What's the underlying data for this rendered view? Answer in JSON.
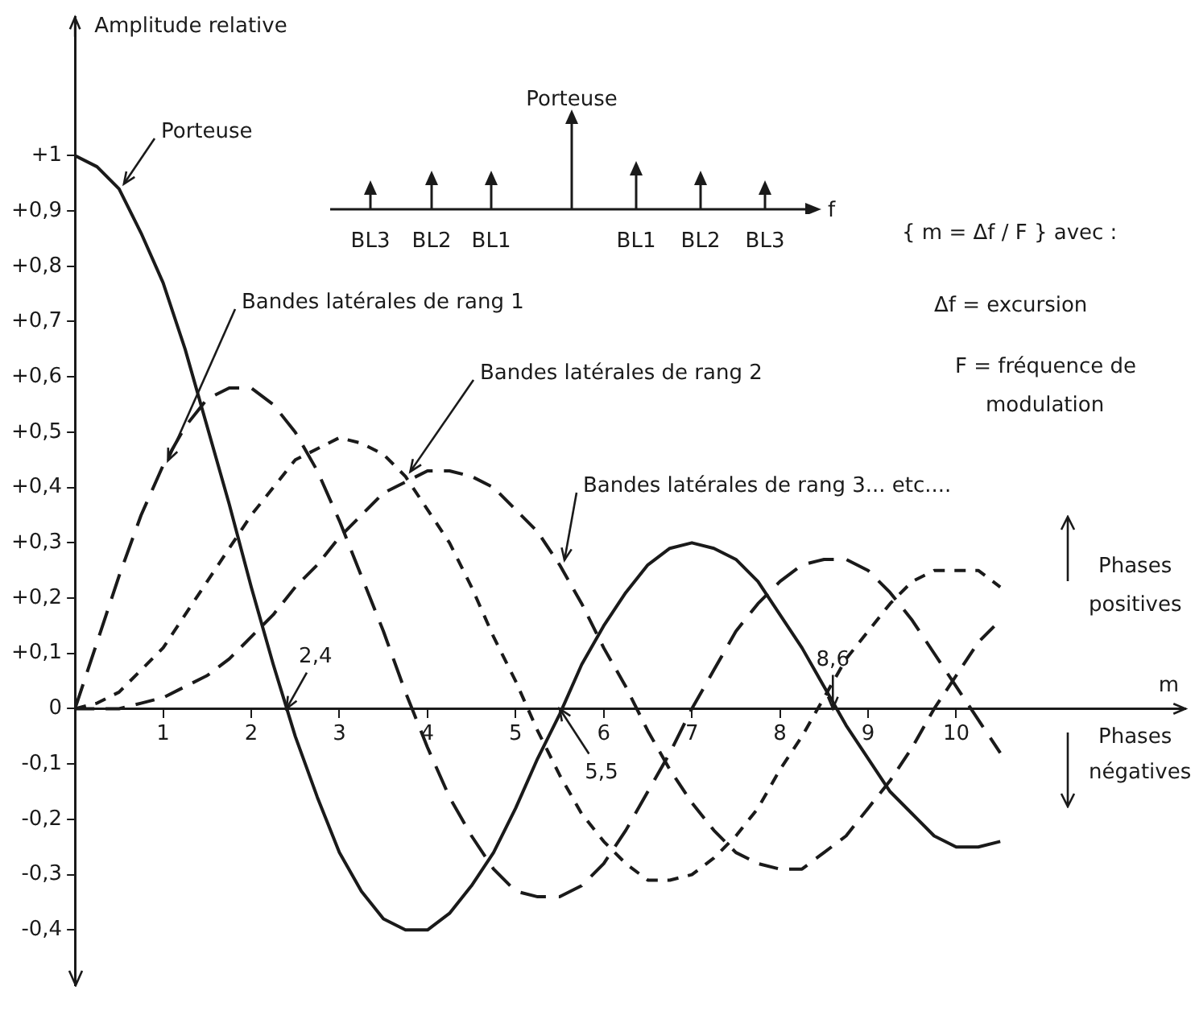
{
  "chart_data": {
    "type": "line",
    "ylabel": "Amplitude relative",
    "xlabel": "m",
    "x": [
      0,
      0.25,
      0.5,
      0.75,
      1,
      1.25,
      1.5,
      1.75,
      2,
      2.25,
      2.5,
      2.75,
      3,
      3.25,
      3.5,
      3.75,
      4,
      4.25,
      4.5,
      4.75,
      5,
      5.25,
      5.5,
      5.75,
      6,
      6.25,
      6.5,
      6.75,
      7,
      7.25,
      7.5,
      7.75,
      8,
      8.25,
      8.5,
      8.75,
      9,
      9.25,
      9.5,
      9.75,
      10,
      10.25,
      10.5
    ],
    "series": [
      {
        "name": "Porteuse",
        "color": "#1a1a1a",
        "line_style": "solid",
        "values": [
          1,
          0.98,
          0.94,
          0.86,
          0.77,
          0.65,
          0.51,
          0.37,
          0.22,
          0.08,
          -0.05,
          -0.16,
          -0.26,
          -0.33,
          -0.38,
          -0.4,
          -0.4,
          -0.37,
          -0.32,
          -0.26,
          -0.18,
          -0.09,
          -0.01,
          0.08,
          0.15,
          0.21,
          0.26,
          0.29,
          0.3,
          0.29,
          0.27,
          0.23,
          0.17,
          0.11,
          0.04,
          -0.03,
          -0.09,
          -0.15,
          -0.19,
          -0.23,
          -0.25,
          -0.25,
          -0.24
        ]
      },
      {
        "name": "Bandes latérales de rang 1",
        "color": "#1a1a1a",
        "line_style": "dashed",
        "values": [
          0,
          0.12,
          0.24,
          0.35,
          0.44,
          0.51,
          0.56,
          0.58,
          0.58,
          0.55,
          0.5,
          0.43,
          0.34,
          0.24,
          0.14,
          0.03,
          -0.07,
          -0.16,
          -0.23,
          -0.29,
          -0.33,
          -0.34,
          -0.34,
          -0.32,
          -0.28,
          -0.22,
          -0.15,
          -0.08,
          0.0,
          0.07,
          0.14,
          0.19,
          0.23,
          0.26,
          0.27,
          0.27,
          0.25,
          0.21,
          0.16,
          0.1,
          0.04,
          -0.02,
          -0.08
        ]
      },
      {
        "name": "Bandes latérales de rang 2",
        "color": "#1a1a1a",
        "line_style": "dashed",
        "values": [
          0,
          0.01,
          0.03,
          0.07,
          0.11,
          0.17,
          0.23,
          0.29,
          0.35,
          0.4,
          0.45,
          0.47,
          0.49,
          0.48,
          0.46,
          0.42,
          0.36,
          0.3,
          0.22,
          0.13,
          0.05,
          -0.04,
          -0.12,
          -0.19,
          -0.24,
          -0.28,
          -0.31,
          -0.31,
          -0.3,
          -0.27,
          -0.23,
          -0.18,
          -0.11,
          -0.05,
          0.02,
          0.09,
          0.14,
          0.19,
          0.23,
          0.25,
          0.25,
          0.25,
          0.22
        ]
      },
      {
        "name": "Bandes latérales de rang 3... etc....",
        "color": "#1a1a1a",
        "line_style": "dashed",
        "values": [
          0,
          0.0,
          0.0,
          0.01,
          0.02,
          0.04,
          0.06,
          0.09,
          0.13,
          0.17,
          0.22,
          0.26,
          0.31,
          0.35,
          0.39,
          0.41,
          0.43,
          0.43,
          0.42,
          0.4,
          0.36,
          0.32,
          0.26,
          0.19,
          0.11,
          0.04,
          -0.04,
          -0.11,
          -0.17,
          -0.22,
          -0.26,
          -0.28,
          -0.29,
          -0.29,
          -0.26,
          -0.23,
          -0.18,
          -0.13,
          -0.07,
          0.0,
          0.06,
          0.12,
          0.16
        ]
      }
    ],
    "xlim": [
      0,
      12.6
    ],
    "xticks": [
      1,
      2,
      3,
      4,
      5,
      6,
      7,
      8,
      9,
      10
    ],
    "ylim": [
      -0.5,
      1.25
    ],
    "yticks": [
      {
        "value": -0.4,
        "label": "-0,4"
      },
      {
        "value": -0.3,
        "label": "-0,3"
      },
      {
        "value": -0.2,
        "label": "-0,2"
      },
      {
        "value": -0.1,
        "label": "-0,1"
      },
      {
        "value": 0,
        "label": "0"
      },
      {
        "value": 0.1,
        "label": "+0,1"
      },
      {
        "value": 0.2,
        "label": "+0,2"
      },
      {
        "value": 0.3,
        "label": "+0,3"
      },
      {
        "value": 0.4,
        "label": "+0,4"
      },
      {
        "value": 0.5,
        "label": "+0,5"
      },
      {
        "value": 0.6,
        "label": "+0,6"
      },
      {
        "value": 0.7,
        "label": "+0,7"
      },
      {
        "value": 0.8,
        "label": "+0,8"
      },
      {
        "value": 0.9,
        "label": "+0,9"
      },
      {
        "value": 1,
        "label": "+1"
      }
    ],
    "grid": false,
    "legend": false,
    "marker": "none",
    "annotations": [
      "Porteuse",
      "BL3",
      "BL2",
      "BL1",
      "BL1",
      "BL2",
      "BL3",
      "f",
      "{ m = Δf / F } avec :",
      "Δf = excursion",
      "F = fréquence de",
      "modulation",
      "Phases",
      "positives",
      "Phases",
      "négatives",
      {
        "text": "2,4",
        "x": 2.4,
        "y": 0
      },
      {
        "text": "5,5",
        "x": 5.5,
        "y": 0
      },
      {
        "text": "8,6",
        "x": 8.6,
        "y": 0
      }
    ]
  }
}
